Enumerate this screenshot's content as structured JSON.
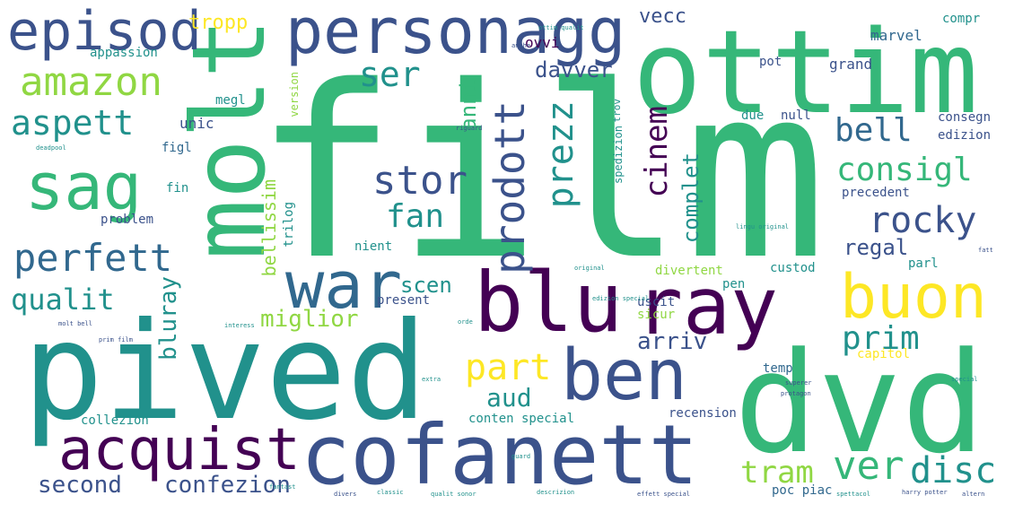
{
  "palette": {
    "purple": "#440154",
    "indigo": "#3b528b",
    "blue": "#31688e",
    "teal": "#21918c",
    "green": "#35b779",
    "lime": "#90d743",
    "yellow": "#fde725"
  },
  "words": [
    "film",
    "ottim",
    "molt",
    "pived",
    "dvd",
    "blu",
    "ray",
    "cofanett",
    "personagg",
    "episod",
    "sag",
    "war",
    "buon",
    "ben",
    "acquist",
    "amazon",
    "aspett",
    "perfett",
    "qualit",
    "ser",
    "stor",
    "fan",
    "prodott",
    "prezz",
    "cinem",
    "consigl",
    "rocky",
    "bell",
    "prim",
    "ver",
    "disc",
    "tram",
    "part",
    "aud",
    "second",
    "confezion",
    "miglior",
    "bluray",
    "complet",
    "arriv",
    "scen",
    "regal",
    "anni",
    "davver",
    "vecc",
    "tropp",
    "appassion",
    "marvel",
    "compr",
    "grand",
    "ovvi",
    "unic",
    "megl",
    "figl",
    "fin",
    "problem",
    "bellissim",
    "trilog",
    "nient",
    "present",
    "uscit",
    "sicur",
    "temp",
    "capitol",
    "recension",
    "conten special",
    "collezion",
    "pen",
    "poc piac",
    "divertent",
    "custod",
    "parl",
    "precedent",
    "edizion",
    "consegn",
    "null",
    "due",
    "pot",
    "version",
    "spedizion",
    "trov",
    "deadpool",
    "harry potter",
    "effett special",
    "descrizion",
    "qualit sonor",
    "classic",
    "divers",
    "fantast",
    "guard",
    "protagon",
    "superer",
    "edizion special",
    "orde",
    "spettacol",
    "altern",
    "prim film",
    "molt bell",
    "ottim qualit",
    "riguard",
    "lingu original",
    "interess",
    "special",
    "original",
    "anche",
    "extra",
    "fatt"
  ]
}
